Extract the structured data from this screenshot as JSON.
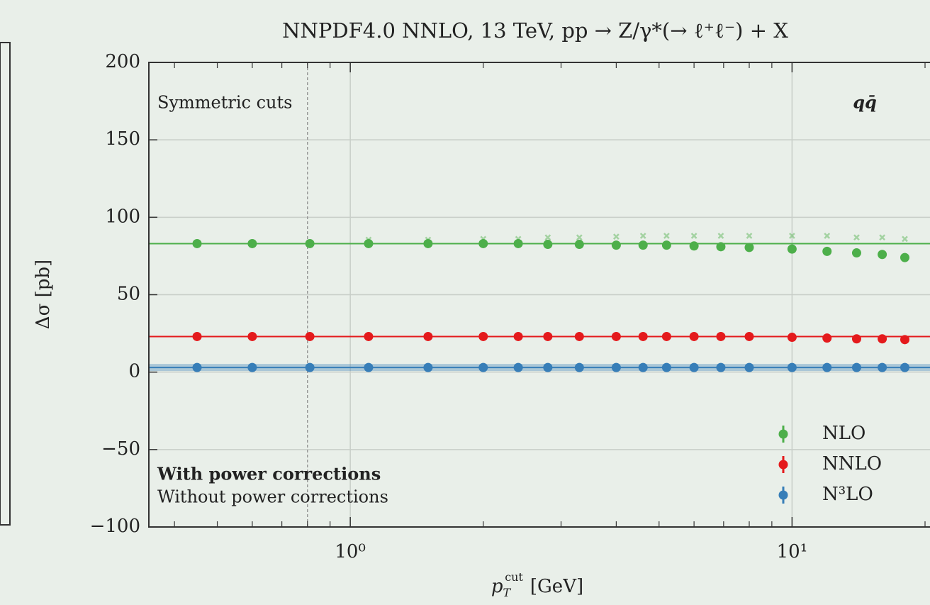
{
  "chart_data": {
    "type": "scatter",
    "title": "NNPDF4.0 NNLO, 13 TeV, pp → Z/γ*(→ ℓ⁺ℓ⁻) + X",
    "ylabel": "Δσ [pb]",
    "xlabel": {
      "symbol": "p",
      "sub": "T",
      "sup": "cut",
      "unit": "[GeV]"
    },
    "x": [
      0.45,
      0.6,
      0.81,
      1.1,
      1.5,
      2,
      2.4,
      2.8,
      3.3,
      4,
      4.6,
      5.2,
      6,
      6.9,
      8,
      10,
      12,
      14,
      16,
      18
    ],
    "series": [
      {
        "name": "NLO",
        "color": "#4daf4a",
        "reference": 83,
        "values": [
          83,
          83,
          83,
          83,
          83,
          83,
          83,
          82.5,
          82.5,
          82,
          82,
          82,
          81.5,
          81,
          80.5,
          79.5,
          78,
          77,
          76,
          74
        ],
        "values_without": [
          83,
          83,
          83,
          85.5,
          85.5,
          86,
          86,
          87,
          87,
          87.5,
          88,
          88,
          88,
          88,
          88,
          88,
          88,
          87,
          87,
          86
        ]
      },
      {
        "name": "NNLO",
        "color": "#e41a1c",
        "reference": 23,
        "values": [
          23,
          23,
          23,
          23,
          23,
          23,
          23,
          23,
          23,
          23,
          23,
          23,
          23,
          23,
          23,
          22.5,
          22,
          21.5,
          21.5,
          21
        ]
      },
      {
        "name": "N³LO",
        "color": "#377eb8",
        "reference": 3,
        "values": [
          3,
          3,
          3,
          3,
          3,
          3,
          3,
          3,
          3,
          3,
          3,
          3,
          3,
          3,
          3,
          3,
          3,
          3,
          3,
          3
        ]
      }
    ],
    "cut_line": 0.8,
    "annotations": {
      "top_left": "Symmetric cuts",
      "top_right": "qq̄",
      "with": "With power corrections",
      "without": "Without power corrections"
    },
    "xscale": "log",
    "xlim": [
      0.35,
      20
    ],
    "xticks": [
      {
        "value": 1,
        "label": "10⁰"
      },
      {
        "value": 10,
        "label": "10¹"
      }
    ],
    "xminor": [
      0.4,
      0.5,
      0.6,
      0.7,
      0.8,
      0.9,
      2,
      3,
      4,
      5,
      6,
      7,
      8,
      9,
      20
    ],
    "ylim": [
      -100,
      200
    ],
    "yticks": [
      {
        "value": -100,
        "label": "−100"
      },
      {
        "value": -50,
        "label": "−50"
      },
      0,
      50,
      100,
      150,
      200
    ],
    "grid": true,
    "legend": "lower right"
  }
}
